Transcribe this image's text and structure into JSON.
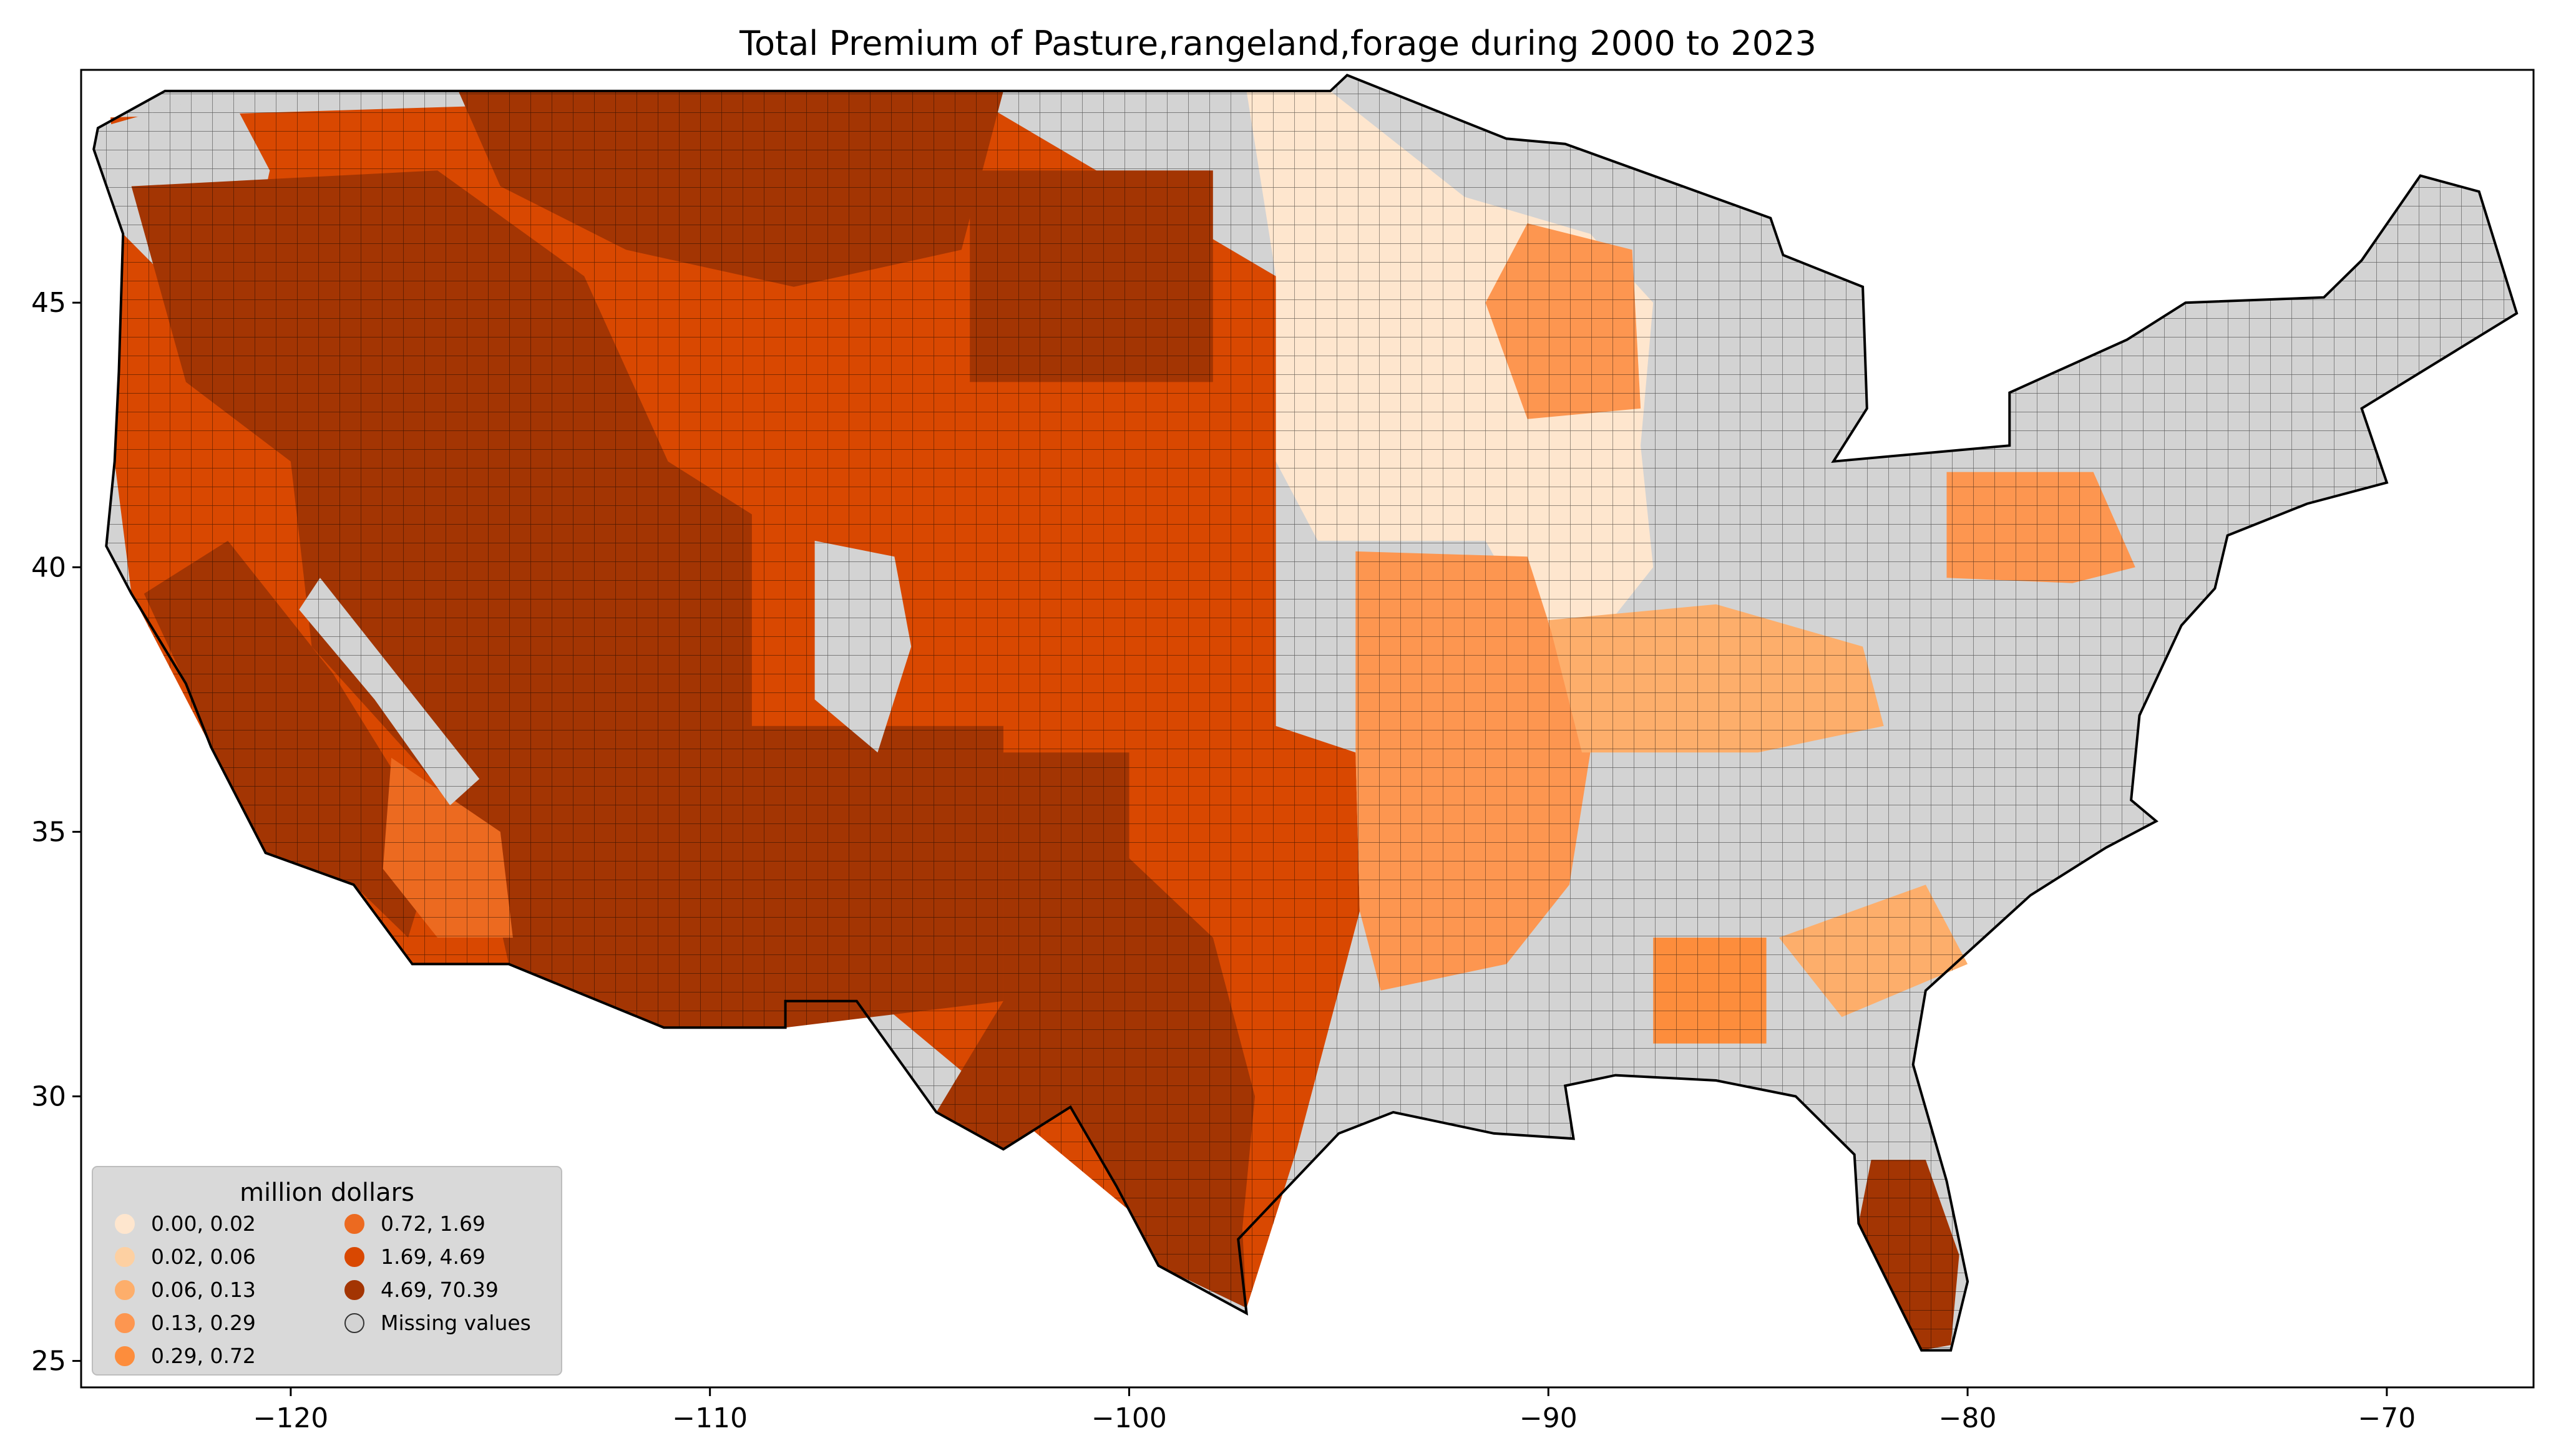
{
  "title": "Total  Premium of Pasture,rangeland,forage during 2000 to 2023",
  "chart_data": {
    "type": "choropleth",
    "region": "contiguous United States, county level",
    "xlim": [
      -125,
      -66.5
    ],
    "ylim": [
      24.5,
      49.4
    ],
    "x_ticks": [
      -120,
      -110,
      -100,
      -90,
      -80,
      -70
    ],
    "x_tick_labels": [
      "−120",
      "−110",
      "−100",
      "−90",
      "−80",
      "−70"
    ],
    "y_ticks": [
      25,
      30,
      35,
      40,
      45
    ],
    "y_tick_labels": [
      "25",
      "30",
      "35",
      "40",
      "45"
    ],
    "legend": {
      "title": "million dollars",
      "placement": "lower-left",
      "entries": [
        {
          "label": "0.00,  0.02",
          "color": "#fee6ce"
        },
        {
          "label": "0.02,  0.06",
          "color": "#fdd0a2"
        },
        {
          "label": "0.06,  0.13",
          "color": "#fdae6b"
        },
        {
          "label": "0.13,  0.29",
          "color": "#fd9650"
        },
        {
          "label": "0.29,  0.72",
          "color": "#fd8d3c"
        },
        {
          "label": "0.72,  1.69",
          "color": "#ec6a20"
        },
        {
          "label": "1.69,  4.69",
          "color": "#d94801"
        },
        {
          "label": "4.69, 70.39",
          "color": "#a33503"
        },
        {
          "label": "Missing values",
          "color": "#d3d3d3"
        }
      ]
    },
    "regional_pattern": [
      {
        "area": "Great Basin / Southwest (NV, UT, AZ, NM, OR, ID)",
        "class": "4.69, 70.39"
      },
      {
        "area": "Texas panhandle and central Texas",
        "class": "4.69, 70.39"
      },
      {
        "area": "Great Plains (MT, WY, CO, Dakotas, NE, KS, OK)",
        "class": "1.69,  4.69"
      },
      {
        "area": "Southern Florida",
        "class": "4.69, 70.39"
      },
      {
        "area": "Upper Midwest (IA, MN, WI, IL)",
        "class": "0.00,  0.02"
      },
      {
        "area": "Southeast / Appalachia / Northeast",
        "class": "Missing values"
      }
    ]
  }
}
